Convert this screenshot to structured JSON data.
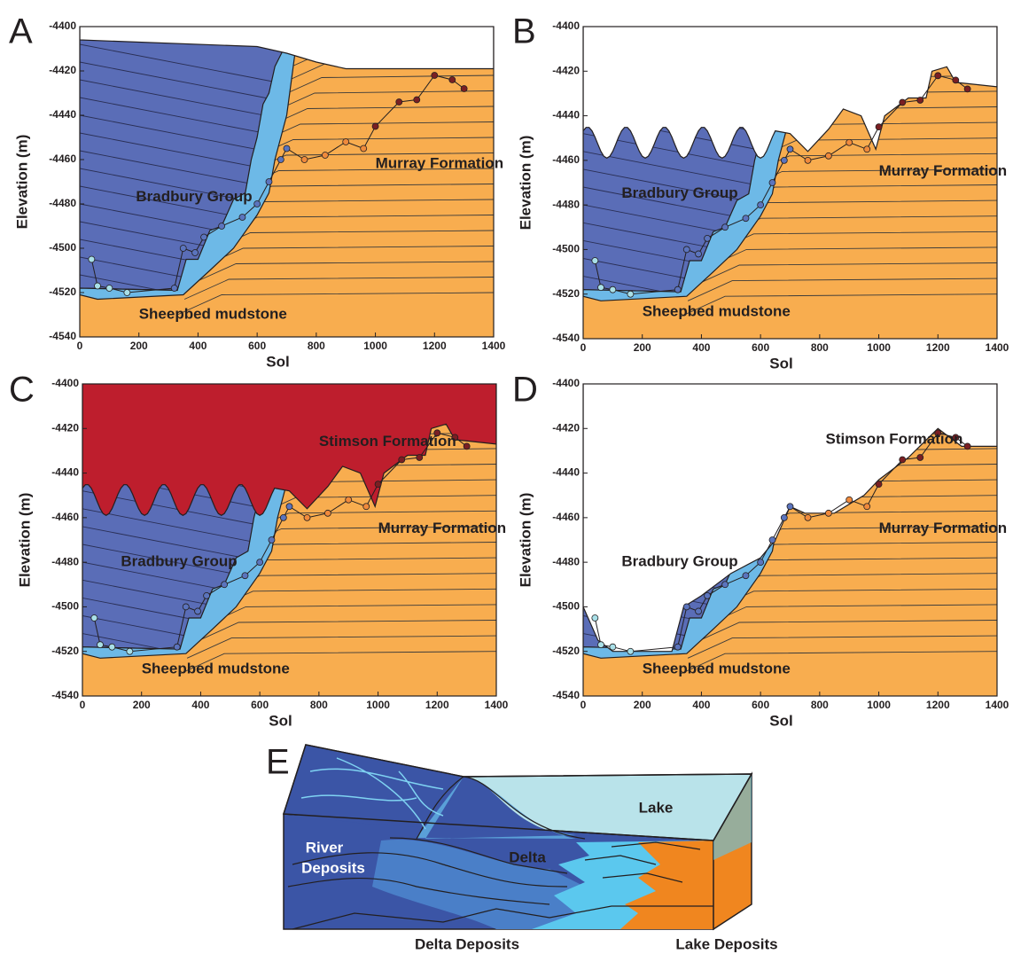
{
  "panels": [
    {
      "letter": "A",
      "x_label": "Sol",
      "y_label": "Elevation (m)",
      "xlim": [
        0,
        1400
      ],
      "ylim": [
        -4540,
        -4400
      ],
      "xticks": [
        0,
        200,
        400,
        600,
        800,
        1000,
        1200,
        1400
      ],
      "yticks": [
        -4400,
        -4420,
        -4440,
        -4460,
        -4480,
        -4500,
        -4520,
        -4540
      ],
      "labels": [
        "Bradbury Group",
        "Murray Formation",
        "Sheepbed mudstone"
      ]
    },
    {
      "letter": "B",
      "x_label": "Sol",
      "y_label": "Elevation (m)",
      "xlim": [
        0,
        1400
      ],
      "ylim": [
        -4540,
        -4400
      ],
      "xticks": [
        0,
        200,
        400,
        600,
        800,
        1000,
        1200,
        1400
      ],
      "yticks": [
        -4400,
        -4420,
        -4440,
        -4460,
        -4480,
        -4500,
        -4520,
        -4540
      ],
      "labels": [
        "Bradbury Group",
        "Murray Formation",
        "Sheepbed mudstone"
      ]
    },
    {
      "letter": "C",
      "x_label": "Sol",
      "y_label": "Elevation (m)",
      "xlim": [
        0,
        1400
      ],
      "ylim": [
        -4540,
        -4400
      ],
      "xticks": [
        0,
        200,
        400,
        600,
        800,
        1000,
        1200,
        1400
      ],
      "yticks": [
        -4400,
        -4420,
        -4440,
        -4460,
        -4480,
        -4500,
        -4520,
        -4540
      ],
      "labels": [
        "Stimson Formation",
        "Bradbury Group",
        "Murray Formation",
        "Sheepbed mudstone"
      ]
    },
    {
      "letter": "D",
      "x_label": "Sol",
      "y_label": "Elevation (m)",
      "xlim": [
        0,
        1400
      ],
      "ylim": [
        -4540,
        -4400
      ],
      "xticks": [
        0,
        200,
        400,
        600,
        800,
        1000,
        1200,
        1400
      ],
      "yticks": [
        -4400,
        -4420,
        -4440,
        -4460,
        -4480,
        -4500,
        -4520,
        -4540
      ],
      "labels": [
        "Stimson Formation",
        "Bradbury Group",
        "Murray Formation",
        "Sheepbed mudstone"
      ]
    }
  ],
  "panel_e": {
    "letter": "E",
    "lake": "Lake",
    "river_deposits": [
      "River",
      "Deposits"
    ],
    "delta": "Delta",
    "delta_deposits": "Delta Deposits",
    "lake_deposits": "Lake Deposits"
  }
}
